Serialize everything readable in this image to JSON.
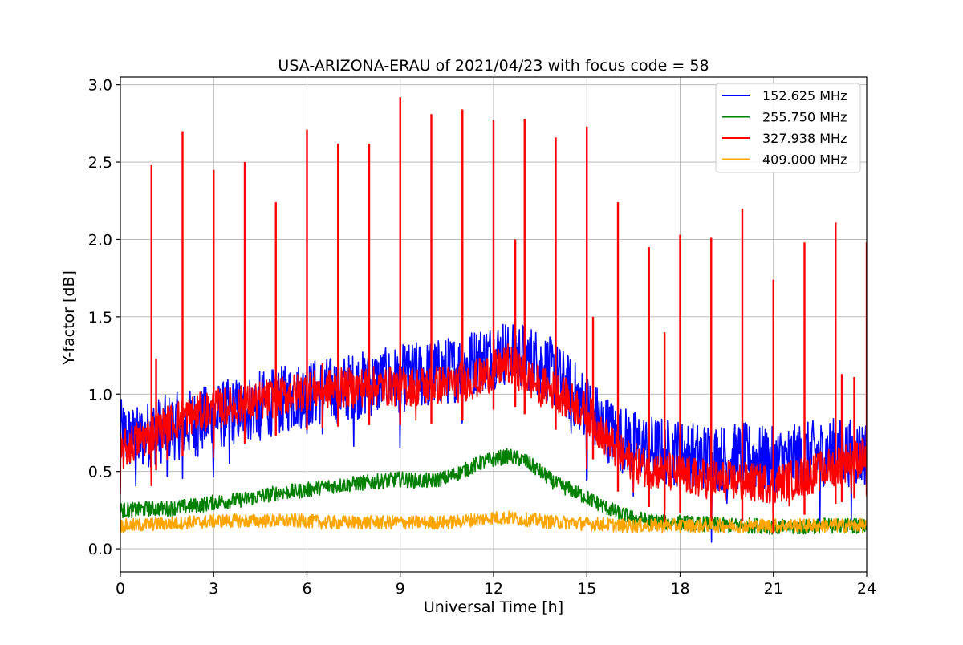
{
  "chart_data": {
    "type": "line",
    "title": "USA-ARIZONA-ERAU of 2021/04/23 with focus code = 58",
    "xlabel": "Universal Time [h]",
    "ylabel": "Y-factor [dB]",
    "xlim": [
      0,
      24
    ],
    "ylim": [
      -0.15,
      3.05
    ],
    "xticks": [
      "0",
      "3",
      "6",
      "9",
      "12",
      "15",
      "18",
      "21",
      "24"
    ],
    "yticks": [
      "0.0",
      "0.5",
      "1.0",
      "1.5",
      "2.0",
      "2.5",
      "3.0"
    ],
    "grid": true,
    "legend_position": "top-right",
    "series": [
      {
        "name": "152.625 MHz",
        "color": "#0000ff",
        "x": [
          0,
          0.5,
          1,
          1.5,
          2,
          2.5,
          3,
          3.5,
          4,
          4.5,
          5,
          5.5,
          6,
          6.5,
          7,
          7.5,
          8,
          8.5,
          9,
          9.5,
          10,
          10.5,
          11,
          11.5,
          12,
          12.5,
          13,
          13.5,
          14,
          14.5,
          15,
          15.5,
          16,
          16.5,
          17,
          17.5,
          18,
          18.5,
          19,
          19.5,
          20,
          20.5,
          21,
          21.5,
          22,
          22.5,
          23,
          23.5,
          24
        ],
        "values": [
          0.75,
          0.7,
          0.75,
          0.78,
          0.8,
          0.82,
          0.85,
          0.88,
          0.9,
          0.93,
          0.95,
          0.98,
          1.0,
          1.02,
          1.03,
          1.05,
          1.07,
          1.08,
          1.1,
          1.12,
          1.13,
          1.15,
          1.18,
          1.22,
          1.25,
          1.28,
          1.25,
          1.2,
          1.12,
          1.02,
          0.92,
          0.8,
          0.72,
          0.68,
          0.65,
          0.63,
          0.62,
          0.6,
          0.6,
          0.58,
          0.6,
          0.58,
          0.57,
          0.58,
          0.6,
          0.62,
          0.63,
          0.62,
          0.62
        ]
      },
      {
        "name": "255.750 MHz",
        "color": "#008000",
        "x": [
          0,
          0.5,
          1,
          1.5,
          2,
          2.5,
          3,
          3.5,
          4,
          4.5,
          5,
          5.5,
          6,
          6.5,
          7,
          7.5,
          8,
          8.5,
          9,
          9.5,
          10,
          10.5,
          11,
          11.5,
          12,
          12.5,
          13,
          13.5,
          14,
          14.5,
          15,
          15.5,
          16,
          16.5,
          17,
          17.5,
          18,
          18.5,
          19,
          19.5,
          20,
          20.5,
          21,
          21.5,
          22,
          22.5,
          23,
          23.5,
          24
        ],
        "values": [
          0.25,
          0.25,
          0.26,
          0.26,
          0.27,
          0.28,
          0.3,
          0.31,
          0.32,
          0.34,
          0.36,
          0.37,
          0.38,
          0.4,
          0.41,
          0.42,
          0.43,
          0.44,
          0.45,
          0.44,
          0.44,
          0.46,
          0.5,
          0.55,
          0.58,
          0.6,
          0.57,
          0.5,
          0.42,
          0.38,
          0.33,
          0.28,
          0.23,
          0.2,
          0.18,
          0.17,
          0.17,
          0.16,
          0.16,
          0.15,
          0.15,
          0.15,
          0.14,
          0.14,
          0.14,
          0.15,
          0.15,
          0.15,
          0.15
        ]
      },
      {
        "name": "327.938 MHz",
        "color": "#ff0000",
        "x": [
          0,
          0.5,
          1,
          1.5,
          2,
          2.5,
          3,
          3.5,
          4,
          4.5,
          5,
          5.5,
          6,
          6.5,
          7,
          7.5,
          8,
          8.5,
          9,
          9.5,
          10,
          10.5,
          11,
          11.5,
          12,
          12.5,
          13,
          13.5,
          14,
          14.5,
          15,
          15.5,
          16,
          16.5,
          17,
          17.5,
          18,
          18.5,
          19,
          19.5,
          20,
          20.5,
          21,
          21.5,
          22,
          22.5,
          23,
          23.5,
          24
        ],
        "values": [
          0.62,
          0.7,
          0.74,
          0.8,
          0.85,
          0.88,
          0.9,
          0.92,
          0.93,
          0.96,
          0.98,
          1.0,
          1.02,
          1.03,
          1.04,
          1.04,
          1.05,
          1.05,
          1.05,
          1.05,
          1.06,
          1.06,
          1.08,
          1.1,
          1.15,
          1.2,
          1.12,
          1.05,
          1.02,
          0.95,
          0.88,
          0.75,
          0.62,
          0.56,
          0.52,
          0.5,
          0.48,
          0.46,
          0.45,
          0.44,
          0.43,
          0.43,
          0.42,
          0.44,
          0.47,
          0.5,
          0.54,
          0.57,
          0.6
        ],
        "spikes": {
          "x": [
            1,
            1.15,
            2,
            3,
            4,
            5,
            6,
            6.5,
            7,
            8,
            9,
            10,
            11,
            12,
            12.7,
            13,
            14,
            15,
            15.2,
            16,
            17,
            17.5,
            18,
            19,
            20,
            21,
            22,
            23,
            23.2,
            23.6,
            24
          ],
          "values": [
            2.48,
            1.23,
            2.7,
            2.45,
            2.5,
            2.24,
            2.71,
            1.2,
            2.62,
            2.62,
            2.92,
            2.81,
            2.84,
            2.77,
            2.0,
            2.78,
            2.66,
            2.73,
            1.5,
            2.24,
            1.95,
            1.4,
            2.03,
            2.01,
            2.2,
            1.74,
            1.98,
            2.11,
            1.13,
            1.11,
            1.98
          ]
        }
      },
      {
        "name": "409.000 MHz",
        "color": "#ffa500",
        "x": [
          0,
          0.5,
          1,
          1.5,
          2,
          2.5,
          3,
          3.5,
          4,
          4.5,
          5,
          5.5,
          6,
          6.5,
          7,
          7.5,
          8,
          8.5,
          9,
          9.5,
          10,
          10.5,
          11,
          11.5,
          12,
          12.5,
          13,
          13.5,
          14,
          14.5,
          15,
          15.5,
          16,
          16.5,
          17,
          17.5,
          18,
          18.5,
          19,
          19.5,
          20,
          20.5,
          21,
          21.5,
          22,
          22.5,
          23,
          23.5,
          24
        ],
        "values": [
          0.15,
          0.15,
          0.16,
          0.16,
          0.17,
          0.17,
          0.18,
          0.18,
          0.18,
          0.18,
          0.18,
          0.18,
          0.18,
          0.17,
          0.17,
          0.17,
          0.17,
          0.17,
          0.17,
          0.17,
          0.17,
          0.17,
          0.18,
          0.19,
          0.2,
          0.2,
          0.19,
          0.18,
          0.17,
          0.17,
          0.16,
          0.16,
          0.15,
          0.15,
          0.15,
          0.15,
          0.15,
          0.15,
          0.15,
          0.15,
          0.15,
          0.15,
          0.15,
          0.15,
          0.15,
          0.15,
          0.15,
          0.15,
          0.15
        ]
      }
    ]
  }
}
